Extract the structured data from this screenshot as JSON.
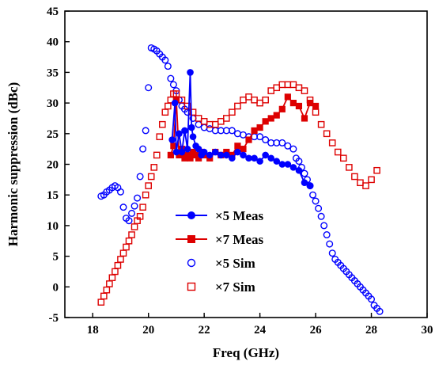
{
  "chart_data": {
    "type": "line",
    "title": "",
    "xlabel": "Freq (GHz)",
    "ylabel": "Harmonic suppression (dBc)",
    "xlim": [
      17,
      30
    ],
    "ylim": [
      -5,
      45
    ],
    "xticks": [
      18,
      20,
      22,
      24,
      26,
      28,
      30
    ],
    "yticks": [
      -5,
      0,
      5,
      10,
      15,
      20,
      25,
      30,
      35,
      40,
      45
    ],
    "grid": false,
    "legend_position": "lower-center",
    "series": [
      {
        "name": "×5 Meas",
        "color": "#0000ff",
        "marker": "circle-filled",
        "line": true,
        "x": [
          20.85,
          20.95,
          21.0,
          21.1,
          21.2,
          21.3,
          21.4,
          21.5,
          21.55,
          21.6,
          21.7,
          21.8,
          21.9,
          22.0,
          22.2,
          22.4,
          22.6,
          22.8,
          23.0,
          23.2,
          23.4,
          23.6,
          23.8,
          24.0,
          24.2,
          24.4,
          24.6,
          24.8,
          25.0,
          25.2,
          25.4,
          25.6,
          25.8
        ],
        "y": [
          24.0,
          30.0,
          22.0,
          25.0,
          22.0,
          25.5,
          22.5,
          35.0,
          26.0,
          24.5,
          23.0,
          22.5,
          21.5,
          22.0,
          21.5,
          22.0,
          21.5,
          21.5,
          21.0,
          22.0,
          21.5,
          21.0,
          21.0,
          20.5,
          21.5,
          21.0,
          20.5,
          20.0,
          20.0,
          19.5,
          19.0,
          17.0,
          16.5
        ]
      },
      {
        "name": "×7 Meas",
        "color": "#dd0000",
        "marker": "square-filled",
        "line": true,
        "x": [
          20.8,
          20.9,
          21.0,
          21.1,
          21.2,
          21.3,
          21.4,
          21.5,
          21.6,
          21.7,
          21.8,
          21.9,
          22.0,
          22.2,
          22.4,
          22.6,
          22.8,
          23.0,
          23.2,
          23.4,
          23.6,
          23.8,
          24.0,
          24.2,
          24.4,
          24.6,
          24.8,
          25.0,
          25.2,
          25.4,
          25.6,
          25.8,
          26.0
        ],
        "y": [
          21.5,
          23.0,
          30.5,
          21.5,
          22.5,
          21.0,
          21.5,
          21.0,
          22.0,
          21.5,
          21.0,
          22.0,
          21.5,
          21.0,
          22.0,
          21.5,
          22.0,
          21.5,
          23.0,
          22.5,
          24.0,
          25.5,
          26.0,
          27.0,
          27.5,
          28.0,
          29.0,
          31.0,
          30.0,
          29.5,
          27.5,
          30.0,
          29.5
        ]
      },
      {
        "name": "×5 Sim",
        "color": "#0000ff",
        "marker": "circle-open",
        "line": false,
        "x": [
          18.3,
          18.4,
          18.5,
          18.6,
          18.7,
          18.8,
          18.9,
          19.0,
          19.1,
          19.2,
          19.3,
          19.4,
          19.5,
          19.6,
          19.7,
          19.8,
          19.9,
          20.0,
          20.1,
          20.2,
          20.3,
          20.4,
          20.5,
          20.6,
          20.7,
          20.8,
          20.9,
          21.0,
          21.1,
          21.2,
          21.3,
          21.4,
          21.6,
          21.8,
          22.0,
          22.2,
          22.4,
          22.6,
          22.8,
          23.0,
          23.2,
          23.4,
          23.6,
          23.8,
          24.0,
          24.2,
          24.4,
          24.6,
          24.8,
          25.0,
          25.2,
          25.3,
          25.4,
          25.5,
          25.6,
          25.7,
          25.8,
          25.9,
          26.0,
          26.1,
          26.2,
          26.3,
          26.4,
          26.5,
          26.6,
          26.7,
          26.8,
          26.9,
          27.0,
          27.1,
          27.2,
          27.3,
          27.4,
          27.5,
          27.6,
          27.7,
          27.8,
          27.9,
          28.0,
          28.1,
          28.2,
          28.3
        ],
        "y": [
          14.8,
          15.0,
          15.5,
          15.8,
          16.2,
          16.5,
          16.2,
          15.5,
          13.0,
          11.2,
          10.8,
          12.0,
          13.2,
          14.5,
          18.0,
          22.5,
          25.5,
          32.5,
          39.0,
          38.8,
          38.5,
          38.0,
          37.5,
          37.0,
          36.0,
          34.0,
          33.0,
          32.0,
          30.5,
          29.5,
          29.0,
          28.5,
          27.5,
          26.5,
          26.0,
          25.8,
          25.5,
          25.5,
          25.5,
          25.5,
          25.0,
          24.8,
          24.5,
          24.5,
          24.5,
          24.0,
          23.5,
          23.5,
          23.5,
          23.0,
          22.5,
          21.0,
          20.5,
          19.5,
          18.5,
          17.5,
          16.5,
          15.0,
          14.0,
          12.8,
          11.5,
          10.0,
          8.5,
          7.0,
          5.5,
          4.5,
          4.0,
          3.5,
          3.0,
          2.5,
          2.0,
          1.5,
          1.0,
          0.5,
          0.0,
          -0.5,
          -1.0,
          -1.5,
          -2.0,
          -3.0,
          -3.5,
          -4.0
        ]
      },
      {
        "name": "×7 Sim",
        "color": "#dd0000",
        "marker": "square-open",
        "line": false,
        "x": [
          18.3,
          18.4,
          18.5,
          18.6,
          18.7,
          18.8,
          18.9,
          19.0,
          19.1,
          19.2,
          19.3,
          19.4,
          19.5,
          19.6,
          19.7,
          19.8,
          19.9,
          20.0,
          20.1,
          20.2,
          20.3,
          20.4,
          20.5,
          20.6,
          20.7,
          20.8,
          20.9,
          21.0,
          21.2,
          21.4,
          21.6,
          21.8,
          22.0,
          22.2,
          22.4,
          22.6,
          22.8,
          23.0,
          23.2,
          23.4,
          23.6,
          23.8,
          24.0,
          24.2,
          24.4,
          24.6,
          24.8,
          25.0,
          25.2,
          25.4,
          25.6,
          25.8,
          26.0,
          26.2,
          26.4,
          26.6,
          26.8,
          27.0,
          27.2,
          27.4,
          27.6,
          27.8,
          28.0,
          28.2
        ],
        "y": [
          -2.5,
          -1.5,
          -0.5,
          0.5,
          1.5,
          2.5,
          3.5,
          4.5,
          5.5,
          6.5,
          7.5,
          8.5,
          9.8,
          10.8,
          11.5,
          13.0,
          15.0,
          16.5,
          18.0,
          19.5,
          21.5,
          24.5,
          26.5,
          28.5,
          29.5,
          30.5,
          31.5,
          31.5,
          30.5,
          29.5,
          28.5,
          27.5,
          27.0,
          26.5,
          26.5,
          27.0,
          27.5,
          28.5,
          29.5,
          30.5,
          31.0,
          30.5,
          30.0,
          30.5,
          32.0,
          32.5,
          33.0,
          33.0,
          33.0,
          32.5,
          32.0,
          30.5,
          28.5,
          26.5,
          25.0,
          23.5,
          22.0,
          21.0,
          19.5,
          18.0,
          17.0,
          16.5,
          17.5,
          19.0
        ]
      }
    ]
  }
}
